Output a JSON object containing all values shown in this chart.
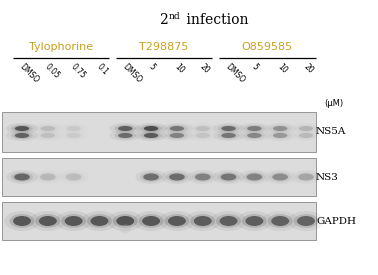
{
  "title_text": "2",
  "title_sup": "nd",
  "title_rest": " infection",
  "group_labels": [
    "Tylophorine",
    "T298875",
    "O859585"
  ],
  "group_label_color": "#c8a020",
  "lane_labels": [
    "DMSO",
    "0.05",
    "0.75",
    "0.1",
    "DMSO",
    "5",
    "10",
    "20",
    "DMSO",
    "5",
    "10",
    "20"
  ],
  "unit_label": "(μM)",
  "row_labels": [
    "NS5A",
    "NS3",
    "GAPDH"
  ],
  "bg_color": "#dcdcdc",
  "band_dark": "#222222",
  "band_med": "#555555",
  "border_color": "#888888",
  "NS5A_intensities": [
    0.88,
    0.18,
    0.1,
    0.0,
    0.8,
    0.95,
    0.62,
    0.15,
    0.72,
    0.58,
    0.45,
    0.22
  ],
  "NS3_intensities": [
    0.78,
    0.22,
    0.18,
    0.0,
    0.0,
    0.72,
    0.75,
    0.58,
    0.67,
    0.57,
    0.5,
    0.32
  ],
  "GAPDH_intensities": [
    0.88,
    0.88,
    0.88,
    0.88,
    0.92,
    0.88,
    0.86,
    0.84,
    0.82,
    0.82,
    0.8,
    0.78
  ],
  "fig_width": 3.78,
  "fig_height": 2.75,
  "dpi": 100
}
